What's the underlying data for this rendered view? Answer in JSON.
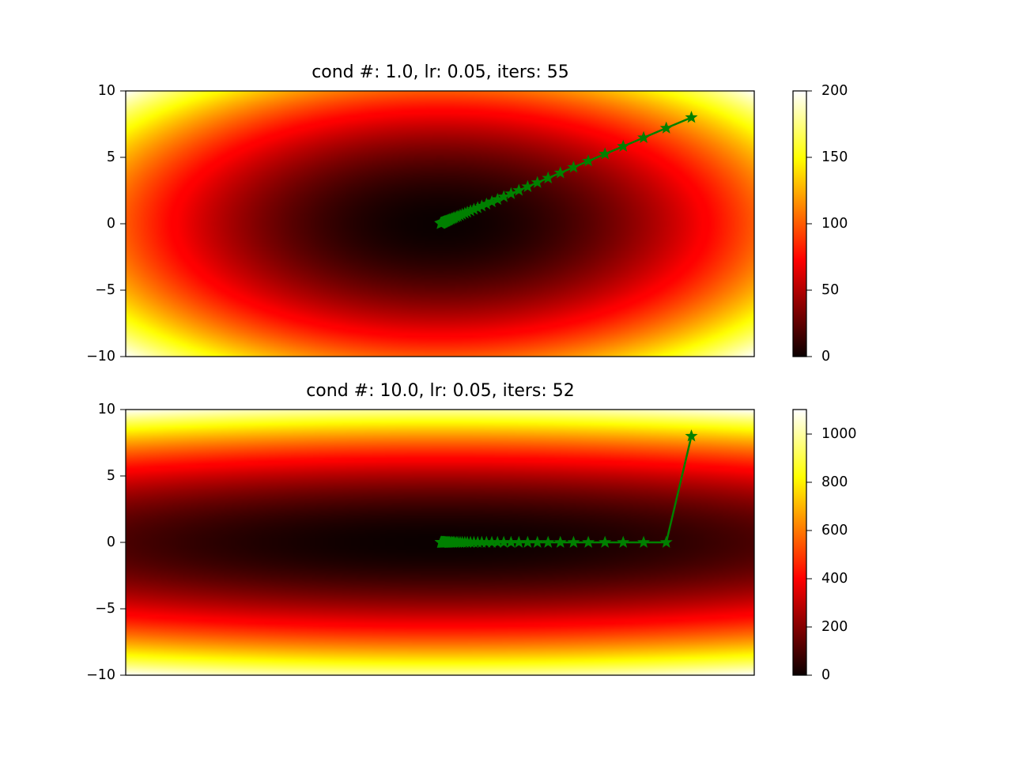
{
  "chart_data": [
    {
      "type": "heatmap",
      "title": "cond #: 1.0, lr: 0.05, iters: 55",
      "colormap": "hot",
      "cond": 1.0,
      "lr": 0.05,
      "iters": 55,
      "xlim": [
        -10,
        10
      ],
      "ylim": [
        -10,
        10
      ],
      "xticks_visible": false,
      "yticks": [
        10,
        5,
        0,
        -5,
        -10
      ],
      "colorbar": {
        "range": [
          0,
          200
        ],
        "ticks": [
          200,
          150,
          100,
          50,
          0
        ]
      },
      "path": {
        "color": "#008000",
        "marker": "star",
        "points": [
          [
            8,
            8
          ],
          [
            7.2,
            7.2
          ],
          [
            6.48,
            6.48
          ],
          [
            5.83,
            5.83
          ],
          [
            5.25,
            5.25
          ],
          [
            4.72,
            4.72
          ],
          [
            4.25,
            4.25
          ],
          [
            3.83,
            3.83
          ],
          [
            3.44,
            3.44
          ],
          [
            3.1,
            3.1
          ],
          [
            2.79,
            2.79
          ],
          [
            2.51,
            2.51
          ],
          [
            2.26,
            2.26
          ],
          [
            2.03,
            2.03
          ],
          [
            1.83,
            1.83
          ],
          [
            1.65,
            1.65
          ],
          [
            1.48,
            1.48
          ],
          [
            1.33,
            1.33
          ],
          [
            1.2,
            1.2
          ],
          [
            1.08,
            1.08
          ],
          [
            0.97,
            0.97
          ],
          [
            0.87,
            0.87
          ],
          [
            0.79,
            0.79
          ],
          [
            0.71,
            0.71
          ],
          [
            0.64,
            0.64
          ],
          [
            0.57,
            0.57
          ],
          [
            0.52,
            0.52
          ],
          [
            0.46,
            0.46
          ],
          [
            0.42,
            0.42
          ],
          [
            0.38,
            0.38
          ],
          [
            0.34,
            0.34
          ],
          [
            0.3,
            0.3
          ],
          [
            0.27,
            0.27
          ],
          [
            0.25,
            0.25
          ],
          [
            0.22,
            0.22
          ],
          [
            0.2,
            0.2
          ],
          [
            0.18,
            0.18
          ],
          [
            0.16,
            0.16
          ],
          [
            0.15,
            0.15
          ],
          [
            0.13,
            0.13
          ],
          [
            0.12,
            0.12
          ],
          [
            0.11,
            0.11
          ],
          [
            0.1,
            0.1
          ],
          [
            0.09,
            0.09
          ],
          [
            0.08,
            0.08
          ],
          [
            0.07,
            0.07
          ],
          [
            0.06,
            0.06
          ],
          [
            0.05,
            0.05
          ],
          [
            0.05,
            0.05
          ],
          [
            0.04,
            0.04
          ],
          [
            0.04,
            0.04
          ],
          [
            0.03,
            0.03
          ],
          [
            0.03,
            0.03
          ],
          [
            0.03,
            0.03
          ],
          [
            0.02,
            0.02
          ],
          [
            0.02,
            0.02
          ]
        ]
      }
    },
    {
      "type": "heatmap",
      "title": "cond #: 10.0, lr: 0.05, iters: 52",
      "colormap": "hot",
      "cond": 10.0,
      "lr": 0.05,
      "iters": 52,
      "xlim": [
        -10,
        10
      ],
      "ylim": [
        -10,
        10
      ],
      "xticks_visible": false,
      "yticks": [
        10,
        5,
        0,
        -5,
        -10
      ],
      "colorbar": {
        "range": [
          0,
          1100
        ],
        "ticks": [
          1000,
          800,
          600,
          400,
          200,
          0
        ]
      },
      "path": {
        "color": "#008000",
        "marker": "star",
        "points": [
          [
            8,
            8
          ],
          [
            7.2,
            0
          ],
          [
            6.48,
            0
          ],
          [
            5.83,
            0
          ],
          [
            5.25,
            0
          ],
          [
            4.72,
            0
          ],
          [
            4.25,
            0
          ],
          [
            3.83,
            0
          ],
          [
            3.44,
            0
          ],
          [
            3.1,
            0
          ],
          [
            2.79,
            0
          ],
          [
            2.51,
            0
          ],
          [
            2.26,
            0
          ],
          [
            2.03,
            0
          ],
          [
            1.83,
            0
          ],
          [
            1.65,
            0
          ],
          [
            1.48,
            0
          ],
          [
            1.33,
            0
          ],
          [
            1.2,
            0
          ],
          [
            1.08,
            0
          ],
          [
            0.97,
            0
          ],
          [
            0.87,
            0
          ],
          [
            0.79,
            0
          ],
          [
            0.71,
            0
          ],
          [
            0.64,
            0
          ],
          [
            0.57,
            0
          ],
          [
            0.52,
            0
          ],
          [
            0.46,
            0
          ],
          [
            0.42,
            0
          ],
          [
            0.38,
            0
          ],
          [
            0.34,
            0
          ],
          [
            0.3,
            0
          ],
          [
            0.27,
            0
          ],
          [
            0.25,
            0
          ],
          [
            0.22,
            0
          ],
          [
            0.2,
            0
          ],
          [
            0.18,
            0
          ],
          [
            0.16,
            0
          ],
          [
            0.15,
            0
          ],
          [
            0.13,
            0
          ],
          [
            0.12,
            0
          ],
          [
            0.11,
            0
          ],
          [
            0.1,
            0
          ],
          [
            0.09,
            0
          ],
          [
            0.08,
            0
          ],
          [
            0.07,
            0
          ],
          [
            0.06,
            0
          ],
          [
            0.05,
            0
          ],
          [
            0.05,
            0
          ],
          [
            0.04,
            0
          ],
          [
            0.04,
            0
          ],
          [
            0.03,
            0
          ],
          [
            0.03,
            0
          ]
        ]
      }
    }
  ]
}
